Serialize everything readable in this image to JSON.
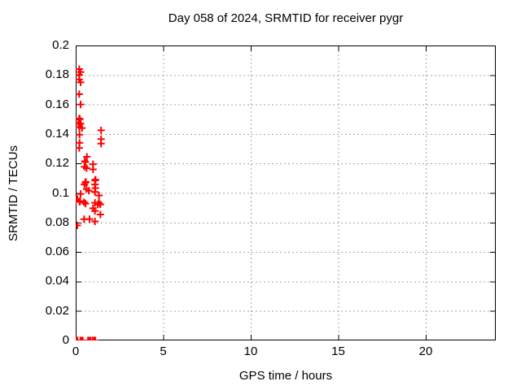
{
  "chart_data": {
    "type": "scatter",
    "title": "Day 058 of 2024, SRMTID for receiver pygr",
    "xlabel": "GPS time / hours",
    "ylabel": "SRMTID / TECUs",
    "xlim": [
      0,
      24
    ],
    "ylim": [
      0,
      0.2
    ],
    "grid": true,
    "legend": false,
    "xticks": {
      "values": [
        0,
        5,
        10,
        15,
        20
      ],
      "labels": [
        "0",
        "5",
        "10",
        "15",
        "20"
      ]
    },
    "yticks": {
      "values": [
        0,
        0.02,
        0.04,
        0.06,
        0.08,
        0.1,
        0.12,
        0.14,
        0.16,
        0.18,
        0.2
      ],
      "labels": [
        "0",
        "0.02",
        "0.04",
        "0.06",
        "0.08",
        "0.1",
        "0.12",
        "0.14",
        "0.16",
        "0.18",
        "0.2"
      ]
    },
    "marker": {
      "symbol": "plus",
      "color": "#ff0000",
      "size": 9
    },
    "grid_color": "#a6a6a6",
    "series": [
      {
        "name": "SRMTID",
        "points": [
          [
            0.2,
            0.184
          ],
          [
            0.28,
            0.182
          ],
          [
            0.2,
            0.18
          ],
          [
            0.2,
            0.177
          ],
          [
            0.28,
            0.175
          ],
          [
            0.2,
            0.167
          ],
          [
            0.28,
            0.16
          ],
          [
            0.2,
            0.1505
          ],
          [
            0.24,
            0.15
          ],
          [
            0.15,
            0.1475
          ],
          [
            0.28,
            0.147
          ],
          [
            0.2,
            0.1445
          ],
          [
            0.36,
            0.144
          ],
          [
            0.22,
            0.1395
          ],
          [
            1.45,
            0.1425
          ],
          [
            1.45,
            0.1365
          ],
          [
            1.45,
            0.1335
          ],
          [
            0.22,
            0.134
          ],
          [
            0.2,
            0.1305
          ],
          [
            0.64,
            0.1245
          ],
          [
            0.52,
            0.1215
          ],
          [
            0.55,
            0.121
          ],
          [
            0.5,
            0.1178
          ],
          [
            0.62,
            0.1168
          ],
          [
            0.99,
            0.1195
          ],
          [
            0.99,
            0.116
          ],
          [
            0.55,
            0.107
          ],
          [
            0.58,
            0.1075
          ],
          [
            0.5,
            0.1057
          ],
          [
            1.1,
            0.1085
          ],
          [
            1.13,
            0.109
          ],
          [
            1.1,
            0.1057
          ],
          [
            1.12,
            0.1033
          ],
          [
            0.62,
            0.1026
          ],
          [
            0.75,
            0.1015
          ],
          [
            1.1,
            0.1007
          ],
          [
            0.28,
            0.0993
          ],
          [
            1.33,
            0.0983
          ],
          [
            0.09,
            0.0959
          ],
          [
            0.0,
            0.0952
          ],
          [
            0.22,
            0.094
          ],
          [
            0.25,
            0.0945
          ],
          [
            0.48,
            0.0937
          ],
          [
            0.56,
            0.0928
          ],
          [
            1.1,
            0.0933
          ],
          [
            1.33,
            0.0933
          ],
          [
            1.26,
            0.0922
          ],
          [
            1.41,
            0.0922
          ],
          [
            0.99,
            0.0896
          ],
          [
            1.1,
            0.0878
          ],
          [
            1.41,
            0.0854
          ],
          [
            0.48,
            0.0822
          ],
          [
            0.79,
            0.0822
          ],
          [
            1.1,
            0.0807
          ],
          [
            0.09,
            0.078
          ],
          [
            0.0,
            0
          ],
          [
            0.05,
            0
          ],
          [
            0.1,
            0
          ],
          [
            0.27,
            0
          ],
          [
            0.33,
            0
          ],
          [
            0.4,
            0
          ],
          [
            0.7,
            0
          ],
          [
            0.78,
            0
          ],
          [
            0.86,
            0
          ],
          [
            0.98,
            0
          ],
          [
            1.05,
            0
          ],
          [
            1.12,
            0
          ]
        ]
      }
    ]
  }
}
